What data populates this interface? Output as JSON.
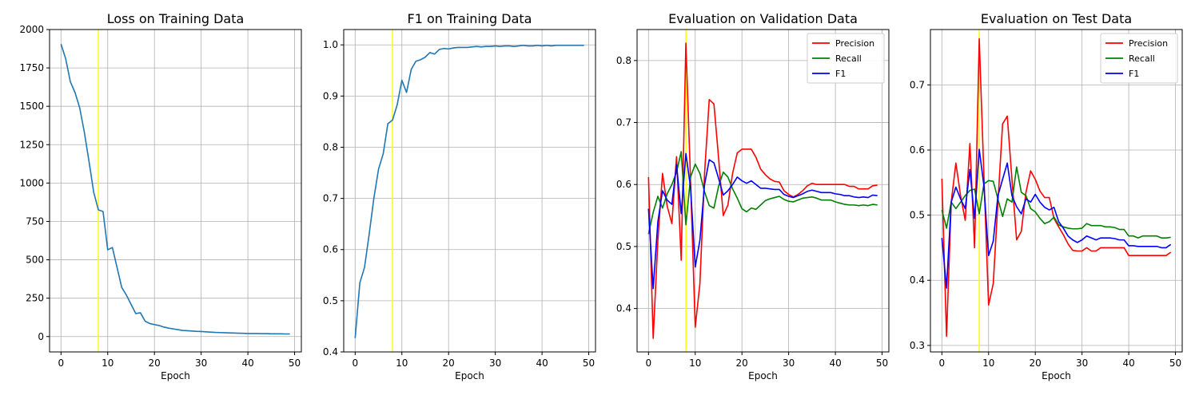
{
  "colors": {
    "series_default": "#1f77b4",
    "precision": "#ff0000",
    "recall": "#008000",
    "f1": "#0000ff",
    "marker": "#ffff00",
    "grid": "#b0b0b0"
  },
  "chart_data": [
    {
      "type": "line",
      "title": "Loss on Training Data",
      "xlabel": "Epoch",
      "ylabel": "",
      "xlim": [
        -2.45,
        51.45
      ],
      "ylim": [
        -100,
        2000
      ],
      "xticks": [
        0,
        10,
        20,
        30,
        40,
        50
      ],
      "xtick_labels": [
        "0",
        "10",
        "20",
        "30",
        "40",
        "50"
      ],
      "yticks": [
        0,
        250,
        500,
        750,
        1000,
        1250,
        1500,
        1750,
        2000
      ],
      "ytick_labels": [
        "0",
        "250",
        "500",
        "750",
        "1000",
        "1250",
        "1500",
        "1750",
        "2000"
      ],
      "grid": true,
      "vline_x": 8,
      "legend": null,
      "series": [
        {
          "color_key": "series_default",
          "x": [
            0,
            1,
            2,
            3,
            4,
            5,
            6,
            7,
            8,
            9,
            10,
            11,
            12,
            13,
            14,
            15,
            16,
            17,
            18,
            19,
            20,
            21,
            22,
            23,
            24,
            25,
            26,
            27,
            28,
            29,
            30,
            31,
            32,
            33,
            34,
            35,
            36,
            37,
            38,
            39,
            40,
            41,
            42,
            43,
            44,
            45,
            46,
            47,
            48,
            49
          ],
          "values": [
            1905,
            1810,
            1660,
            1590,
            1490,
            1330,
            1140,
            940,
            825,
            815,
            565,
            580,
            450,
            320,
            270,
            210,
            150,
            155,
            100,
            85,
            78,
            72,
            62,
            55,
            50,
            45,
            40,
            38,
            36,
            34,
            33,
            31,
            29,
            27,
            26,
            25,
            24,
            23,
            22,
            21,
            20,
            20,
            20,
            19,
            19,
            18,
            18,
            18,
            17,
            17
          ]
        }
      ]
    },
    {
      "type": "line",
      "title": "F1 on Training Data",
      "xlabel": "Epoch",
      "ylabel": "",
      "xlim": [
        -2.45,
        51.45
      ],
      "ylim": [
        0.4,
        1.03
      ],
      "xticks": [
        0,
        10,
        20,
        30,
        40,
        50
      ],
      "xtick_labels": [
        "0",
        "10",
        "20",
        "30",
        "40",
        "50"
      ],
      "yticks": [
        0.4,
        0.5,
        0.6,
        0.7,
        0.8,
        0.9,
        1.0
      ],
      "ytick_labels": [
        "0.4",
        "0.5",
        "0.6",
        "0.7",
        "0.8",
        "0.9",
        "1.0"
      ],
      "grid": true,
      "vline_x": 8,
      "legend": null,
      "series": [
        {
          "color_key": "series_default",
          "x": [
            0,
            1,
            2,
            3,
            4,
            5,
            6,
            7,
            8,
            9,
            10,
            11,
            12,
            13,
            14,
            15,
            16,
            17,
            18,
            19,
            20,
            21,
            22,
            23,
            24,
            25,
            26,
            27,
            28,
            29,
            30,
            31,
            32,
            33,
            34,
            35,
            36,
            37,
            38,
            39,
            40,
            41,
            42,
            43,
            44,
            45,
            46,
            47,
            48,
            49
          ],
          "values": [
            0.427,
            0.535,
            0.565,
            0.63,
            0.7,
            0.757,
            0.787,
            0.846,
            0.853,
            0.883,
            0.931,
            0.907,
            0.952,
            0.968,
            0.971,
            0.976,
            0.985,
            0.982,
            0.991,
            0.993,
            0.992,
            0.994,
            0.995,
            0.995,
            0.995,
            0.996,
            0.997,
            0.996,
            0.997,
            0.997,
            0.998,
            0.997,
            0.998,
            0.998,
            0.997,
            0.998,
            0.999,
            0.998,
            0.998,
            0.999,
            0.998,
            0.999,
            0.998,
            0.999,
            0.999,
            0.999,
            0.999,
            0.999,
            0.999,
            0.999
          ]
        }
      ]
    },
    {
      "type": "line",
      "title": "Evaluation on Validation Data",
      "xlabel": "Epoch",
      "ylabel": "",
      "xlim": [
        -2.45,
        51.45
      ],
      "ylim": [
        0.33,
        0.85
      ],
      "xticks": [
        0,
        10,
        20,
        30,
        40,
        50
      ],
      "xtick_labels": [
        "0",
        "10",
        "20",
        "30",
        "40",
        "50"
      ],
      "yticks": [
        0.4,
        0.5,
        0.6,
        0.7,
        0.8
      ],
      "ytick_labels": [
        "0.4",
        "0.5",
        "0.6",
        "0.7",
        "0.8"
      ],
      "grid": true,
      "vline_x": 8,
      "legend": {
        "position": "top-right",
        "entries": [
          "Precision",
          "Recall",
          "F1"
        ]
      },
      "series": [
        {
          "name": "Precision",
          "color_key": "precision",
          "x": [
            0,
            1,
            2,
            3,
            4,
            5,
            6,
            7,
            8,
            9,
            10,
            11,
            12,
            13,
            14,
            15,
            16,
            17,
            18,
            19,
            20,
            21,
            22,
            23,
            24,
            25,
            26,
            27,
            28,
            29,
            30,
            31,
            32,
            33,
            34,
            35,
            36,
            37,
            38,
            39,
            40,
            41,
            42,
            43,
            44,
            45,
            46,
            47,
            48,
            49
          ],
          "values": [
            0.612,
            0.352,
            0.51,
            0.618,
            0.565,
            0.537,
            0.645,
            0.478,
            0.828,
            0.605,
            0.37,
            0.44,
            0.618,
            0.737,
            0.73,
            0.643,
            0.55,
            0.567,
            0.618,
            0.651,
            0.657,
            0.657,
            0.657,
            0.644,
            0.625,
            0.616,
            0.609,
            0.605,
            0.604,
            0.59,
            0.584,
            0.58,
            0.584,
            0.59,
            0.598,
            0.602,
            0.6,
            0.6,
            0.6,
            0.6,
            0.6,
            0.6,
            0.6,
            0.597,
            0.597,
            0.593,
            0.593,
            0.593,
            0.598,
            0.599
          ]
        },
        {
          "name": "Recall",
          "color_key": "recall",
          "x": [
            0,
            1,
            2,
            3,
            4,
            5,
            6,
            7,
            8,
            9,
            10,
            11,
            12,
            13,
            14,
            15,
            16,
            17,
            18,
            19,
            20,
            21,
            22,
            23,
            24,
            25,
            26,
            27,
            28,
            29,
            30,
            31,
            32,
            33,
            34,
            35,
            36,
            37,
            38,
            39,
            40,
            41,
            42,
            43,
            44,
            45,
            46,
            47,
            48,
            49
          ],
          "values": [
            0.52,
            0.555,
            0.581,
            0.562,
            0.585,
            0.6,
            0.62,
            0.653,
            0.535,
            0.612,
            0.633,
            0.618,
            0.588,
            0.566,
            0.562,
            0.597,
            0.62,
            0.612,
            0.593,
            0.578,
            0.561,
            0.556,
            0.562,
            0.56,
            0.567,
            0.574,
            0.577,
            0.579,
            0.581,
            0.576,
            0.573,
            0.572,
            0.575,
            0.578,
            0.579,
            0.58,
            0.578,
            0.575,
            0.575,
            0.575,
            0.572,
            0.57,
            0.568,
            0.567,
            0.567,
            0.566,
            0.567,
            0.566,
            0.568,
            0.567
          ]
        },
        {
          "name": "F1",
          "color_key": "f1",
          "x": [
            0,
            1,
            2,
            3,
            4,
            5,
            6,
            7,
            8,
            9,
            10,
            11,
            12,
            13,
            14,
            15,
            16,
            17,
            18,
            19,
            20,
            21,
            22,
            23,
            24,
            25,
            26,
            27,
            28,
            29,
            30,
            31,
            32,
            33,
            34,
            35,
            36,
            37,
            38,
            39,
            40,
            41,
            42,
            43,
            44,
            45,
            46,
            47,
            48,
            49
          ],
          "values": [
            0.561,
            0.432,
            0.54,
            0.59,
            0.575,
            0.568,
            0.632,
            0.553,
            0.65,
            0.595,
            0.467,
            0.51,
            0.6,
            0.64,
            0.635,
            0.61,
            0.583,
            0.59,
            0.6,
            0.612,
            0.606,
            0.602,
            0.606,
            0.6,
            0.594,
            0.594,
            0.593,
            0.592,
            0.592,
            0.584,
            0.581,
            0.579,
            0.582,
            0.585,
            0.589,
            0.591,
            0.589,
            0.587,
            0.587,
            0.587,
            0.585,
            0.584,
            0.582,
            0.582,
            0.58,
            0.579,
            0.58,
            0.579,
            0.583,
            0.582
          ]
        }
      ]
    },
    {
      "type": "line",
      "title": "Evaluation on Test Data",
      "xlabel": "Epoch",
      "ylabel": "",
      "xlim": [
        -2.45,
        51.45
      ],
      "ylim": [
        0.29,
        0.785
      ],
      "xticks": [
        0,
        10,
        20,
        30,
        40,
        50
      ],
      "xtick_labels": [
        "0",
        "10",
        "20",
        "30",
        "40",
        "50"
      ],
      "yticks": [
        0.3,
        0.4,
        0.5,
        0.6,
        0.7
      ],
      "ytick_labels": [
        "0.3",
        "0.4",
        "0.5",
        "0.6",
        "0.7"
      ],
      "grid": true,
      "vline_x": 8,
      "legend": {
        "position": "top-right",
        "entries": [
          "Precision",
          "Recall",
          "F1"
        ]
      },
      "series": [
        {
          "name": "Precision",
          "color_key": "precision",
          "x": [
            0,
            1,
            2,
            3,
            4,
            5,
            6,
            7,
            8,
            9,
            10,
            11,
            12,
            13,
            14,
            15,
            16,
            17,
            18,
            19,
            20,
            21,
            22,
            23,
            24,
            25,
            26,
            27,
            28,
            29,
            30,
            31,
            32,
            33,
            34,
            35,
            36,
            37,
            38,
            39,
            40,
            41,
            42,
            43,
            44,
            45,
            46,
            47,
            48,
            49
          ],
          "values": [
            0.556,
            0.314,
            0.52,
            0.58,
            0.53,
            0.492,
            0.61,
            0.45,
            0.771,
            0.56,
            0.362,
            0.395,
            0.52,
            0.64,
            0.652,
            0.555,
            0.462,
            0.475,
            0.535,
            0.568,
            0.555,
            0.537,
            0.527,
            0.527,
            0.495,
            0.482,
            0.47,
            0.456,
            0.446,
            0.445,
            0.445,
            0.45,
            0.445,
            0.445,
            0.45,
            0.45,
            0.45,
            0.45,
            0.45,
            0.45,
            0.438,
            0.438,
            0.438,
            0.438,
            0.438,
            0.438,
            0.438,
            0.438,
            0.438,
            0.443
          ]
        },
        {
          "name": "Recall",
          "color_key": "recall",
          "x": [
            0,
            1,
            2,
            3,
            4,
            5,
            6,
            7,
            8,
            9,
            10,
            11,
            12,
            13,
            14,
            15,
            16,
            17,
            18,
            19,
            20,
            21,
            22,
            23,
            24,
            25,
            26,
            27,
            28,
            29,
            30,
            31,
            32,
            33,
            34,
            35,
            36,
            37,
            38,
            39,
            40,
            41,
            42,
            43,
            44,
            45,
            46,
            47,
            48,
            49
          ],
          "values": [
            0.508,
            0.48,
            0.52,
            0.51,
            0.52,
            0.53,
            0.538,
            0.54,
            0.502,
            0.548,
            0.553,
            0.552,
            0.525,
            0.498,
            0.525,
            0.52,
            0.574,
            0.535,
            0.53,
            0.51,
            0.505,
            0.495,
            0.487,
            0.49,
            0.497,
            0.485,
            0.482,
            0.48,
            0.479,
            0.479,
            0.48,
            0.487,
            0.484,
            0.484,
            0.484,
            0.482,
            0.482,
            0.481,
            0.478,
            0.478,
            0.468,
            0.468,
            0.465,
            0.468,
            0.468,
            0.468,
            0.468,
            0.465,
            0.465,
            0.466
          ]
        },
        {
          "name": "F1",
          "color_key": "f1",
          "x": [
            0,
            1,
            2,
            3,
            4,
            5,
            6,
            7,
            8,
            9,
            10,
            11,
            12,
            13,
            14,
            15,
            16,
            17,
            18,
            19,
            20,
            21,
            22,
            23,
            24,
            25,
            26,
            27,
            28,
            29,
            30,
            31,
            32,
            33,
            34,
            35,
            36,
            37,
            38,
            39,
            40,
            41,
            42,
            43,
            44,
            45,
            46,
            47,
            48,
            49
          ],
          "values": [
            0.465,
            0.388,
            0.52,
            0.543,
            0.525,
            0.51,
            0.57,
            0.495,
            0.601,
            0.545,
            0.438,
            0.46,
            0.53,
            0.555,
            0.58,
            0.53,
            0.513,
            0.502,
            0.525,
            0.52,
            0.532,
            0.52,
            0.512,
            0.508,
            0.512,
            0.49,
            0.48,
            0.468,
            0.462,
            0.458,
            0.462,
            0.468,
            0.465,
            0.462,
            0.465,
            0.465,
            0.465,
            0.464,
            0.462,
            0.462,
            0.453,
            0.453,
            0.452,
            0.452,
            0.452,
            0.452,
            0.452,
            0.45,
            0.45,
            0.455
          ]
        }
      ]
    }
  ]
}
